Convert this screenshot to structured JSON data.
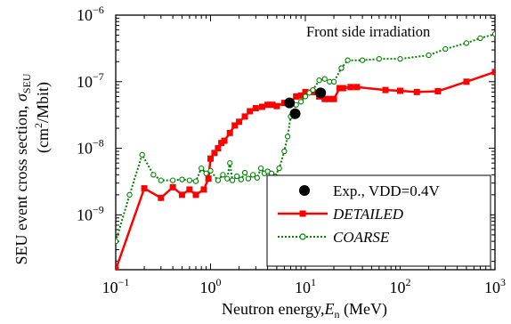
{
  "chart_data": {
    "type": "line",
    "xscale": "log",
    "yscale": "log",
    "xlim": [
      0.1,
      1000
    ],
    "ylim": [
      1.5e-10,
      1e-06
    ],
    "x_ticks": [
      {
        "value": 0.1,
        "base": "10",
        "exp": "−1"
      },
      {
        "value": 1,
        "base": "10",
        "exp": "0"
      },
      {
        "value": 10,
        "base": "10",
        "exp": "1"
      },
      {
        "value": 100,
        "base": "10",
        "exp": "2"
      },
      {
        "value": 1000,
        "base": "10",
        "exp": "3"
      }
    ],
    "y_ticks": [
      {
        "value": 1e-09,
        "base": "10",
        "exp": "−9"
      },
      {
        "value": 1e-08,
        "base": "10",
        "exp": "−8"
      },
      {
        "value": 1e-07,
        "base": "10",
        "exp": "−7"
      },
      {
        "value": 1e-06,
        "base": "10",
        "exp": "−6"
      }
    ],
    "xlabel": {
      "main": "Neutron energy,",
      "var": "E",
      "sub": "n",
      "unit": " (MeV)"
    },
    "ylabel": {
      "line1_main": "SEU event cross section, ",
      "line1_var": "σ",
      "line1_sub": "SEU",
      "line2_open": "(cm",
      "line2_sup": "2",
      "line2_close": "/Mbit)"
    },
    "annotation": "Front side irradiation",
    "legend": {
      "position": "bottom-right",
      "entries": [
        {
          "label": "Exp., VDD=0.4V",
          "italic": false
        },
        {
          "label": "DETAILED",
          "italic": true
        },
        {
          "label": "COARSE",
          "italic": true
        }
      ]
    },
    "series": [
      {
        "name": "Exp., VDD=0.4V",
        "style": "markers",
        "color": "#000000",
        "points": [
          [
            6.8,
            4.8e-08
          ],
          [
            7.8,
            3.3e-08
          ],
          [
            14.5,
            6.8e-08
          ]
        ]
      },
      {
        "name": "DETAILED",
        "style": "line-square",
        "color": "#ff0000",
        "points": [
          [
            0.1,
            1.5e-10
          ],
          [
            0.2,
            2.5e-09
          ],
          [
            0.3,
            1.8e-09
          ],
          [
            0.4,
            2.6e-09
          ],
          [
            0.5,
            2e-09
          ],
          [
            0.6,
            2.4e-09
          ],
          [
            0.7,
            2e-09
          ],
          [
            0.85,
            2.4e-09
          ],
          [
            0.95,
            3.5e-09
          ],
          [
            1.0,
            7e-09
          ],
          [
            1.1,
            8.5e-09
          ],
          [
            1.2,
            1e-08
          ],
          [
            1.3,
            1.2e-08
          ],
          [
            1.4,
            1.3e-08
          ],
          [
            1.6,
            1.7e-08
          ],
          [
            1.8,
            2.2e-08
          ],
          [
            2.0,
            2.5e-08
          ],
          [
            2.3,
            3e-08
          ],
          [
            2.6,
            3.6e-08
          ],
          [
            3.0,
            4e-08
          ],
          [
            3.5,
            4.2e-08
          ],
          [
            4.0,
            4.5e-08
          ],
          [
            4.5,
            4.5e-08
          ],
          [
            5.0,
            4.3e-08
          ],
          [
            6.0,
            4.8e-08
          ],
          [
            7.0,
            5e-08
          ],
          [
            8.0,
            6e-08
          ],
          [
            9.0,
            6.2e-08
          ],
          [
            10.0,
            7e-08
          ],
          [
            12.0,
            7e-08
          ],
          [
            14.0,
            6e-08
          ],
          [
            16.0,
            5.5e-08
          ],
          [
            18.0,
            5.5e-08
          ],
          [
            20.0,
            5.5e-08
          ],
          [
            23.0,
            8e-08
          ],
          [
            25.0,
            8e-08
          ],
          [
            30.0,
            8.3e-08
          ],
          [
            35.0,
            8.3e-08
          ],
          [
            70.0,
            7.5e-08
          ],
          [
            100.0,
            7.3e-08
          ],
          [
            150.0,
            7e-08
          ],
          [
            250.0,
            7.2e-08
          ],
          [
            500.0,
            1e-07
          ],
          [
            1000.0,
            1.4e-07
          ]
        ]
      },
      {
        "name": "COARSE",
        "style": "dotted-circle",
        "color": "#008000",
        "points": [
          [
            0.1,
            4e-10
          ],
          [
            0.14,
            2e-09
          ],
          [
            0.19,
            8e-09
          ],
          [
            0.25,
            4e-09
          ],
          [
            0.3,
            3.3e-09
          ],
          [
            0.4,
            3.3e-09
          ],
          [
            0.5,
            3.4e-09
          ],
          [
            0.6,
            3.3e-09
          ],
          [
            0.7,
            3.2e-09
          ],
          [
            0.8,
            5e-09
          ],
          [
            0.9,
            4.2e-09
          ],
          [
            1.0,
            4.6e-09
          ],
          [
            1.2,
            3.3e-09
          ],
          [
            1.35,
            4e-09
          ],
          [
            1.5,
            3.5e-09
          ],
          [
            1.6,
            6e-09
          ],
          [
            1.7,
            3.3e-09
          ],
          [
            1.9,
            3.8e-09
          ],
          [
            2.1,
            3.4e-09
          ],
          [
            2.3,
            4.3e-09
          ],
          [
            2.5,
            3.5e-09
          ],
          [
            2.8,
            4e-09
          ],
          [
            3.1,
            3.6e-09
          ],
          [
            3.4,
            5e-09
          ],
          [
            3.7,
            4.2e-09
          ],
          [
            4.0,
            4.5e-09
          ],
          [
            4.4,
            4.2e-09
          ],
          [
            4.8,
            3.8e-09
          ],
          [
            5.3,
            5e-09
          ],
          [
            6.0,
            9e-09
          ],
          [
            6.5,
            1.5e-08
          ],
          [
            7.0,
            3e-08
          ],
          [
            8.0,
            4.5e-08
          ],
          [
            9.0,
            5e-08
          ],
          [
            10.0,
            6e-08
          ],
          [
            11.0,
            6.8e-08
          ],
          [
            12.0,
            7.5e-08
          ],
          [
            14.0,
            1.05e-07
          ],
          [
            16.0,
            1.1e-07
          ],
          [
            18.0,
            1e-07
          ],
          [
            20.0,
            1e-07
          ],
          [
            24.0,
            1.6e-07
          ],
          [
            28.0,
            2.1e-07
          ],
          [
            40.0,
            2.1e-07
          ],
          [
            60.0,
            2.2e-07
          ],
          [
            100.0,
            2.2e-07
          ],
          [
            200.0,
            2.5e-07
          ],
          [
            300.0,
            3.1e-07
          ],
          [
            500.0,
            3.8e-07
          ],
          [
            700.0,
            4.5e-07
          ],
          [
            1000.0,
            5.2e-07
          ]
        ]
      }
    ]
  }
}
